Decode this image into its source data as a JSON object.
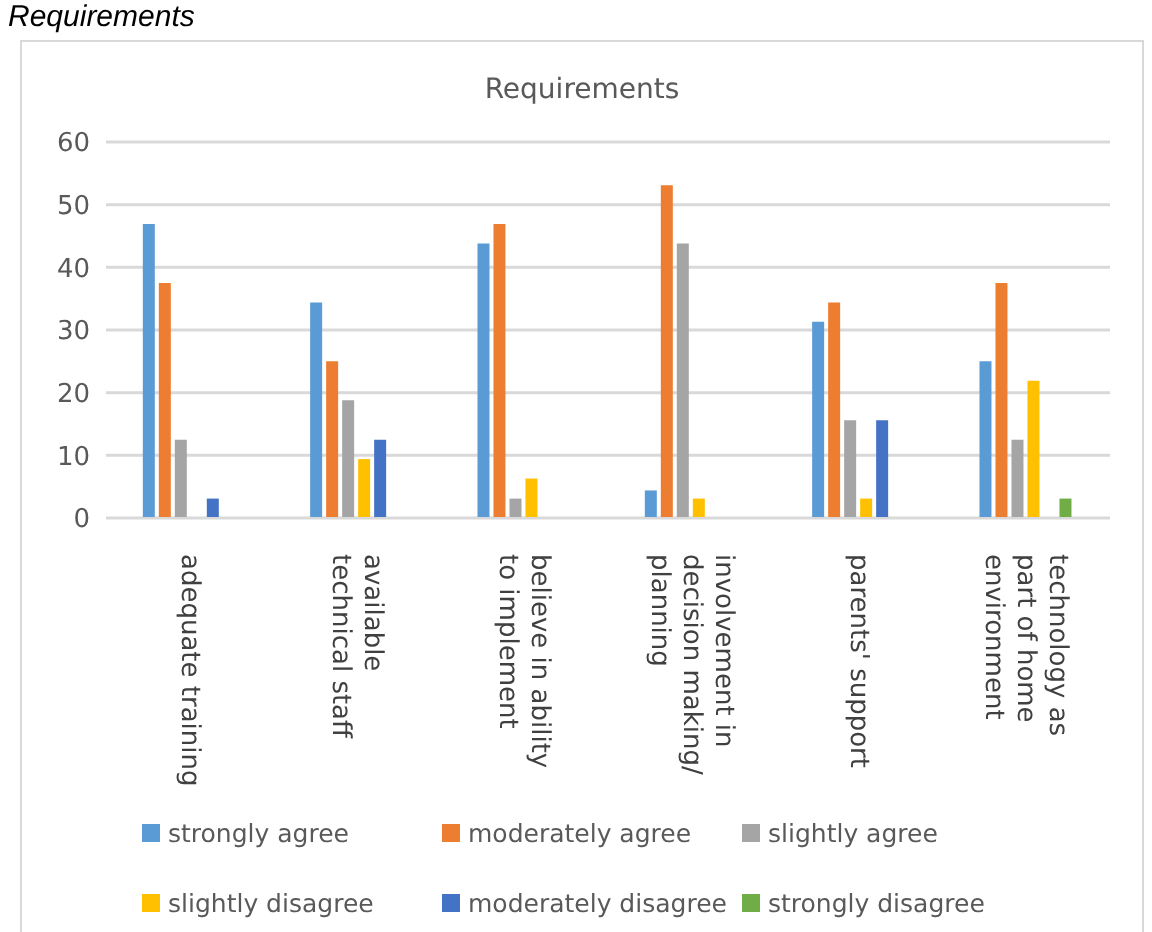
{
  "chart_data": {
    "type": "bar",
    "title": "Requirements",
    "annotations": [
      "Requirements"
    ],
    "categories": [
      "adequate training",
      "available\ntechnical staff",
      "believe in ability\nto implement",
      "involvement in\ndecision making/\nplanning",
      "parents' support",
      "technology as\npart of home\nenvironment"
    ],
    "series": [
      {
        "name": "strongly agree",
        "color": "#5b9bd5",
        "values": [
          46.9,
          34.4,
          43.8,
          4.4,
          31.3,
          25.0
        ]
      },
      {
        "name": "moderately agree",
        "color": "#ed7d31",
        "values": [
          37.5,
          25.0,
          46.9,
          53.1,
          34.4,
          37.5
        ]
      },
      {
        "name": "slightly agree",
        "color": "#a5a5a5",
        "values": [
          12.5,
          18.8,
          3.1,
          43.8,
          15.6,
          12.5
        ]
      },
      {
        "name": "slightly disagree",
        "color": "#ffc000",
        "values": [
          0,
          9.4,
          6.3,
          3.1,
          3.1,
          21.9
        ]
      },
      {
        "name": "moderately disagree",
        "color": "#4472c4",
        "values": [
          3.1,
          12.5,
          0,
          0,
          15.6,
          0
        ]
      },
      {
        "name": "strongly disagree",
        "color": "#70ad47",
        "values": [
          0,
          0,
          0,
          0,
          0,
          3.1
        ]
      }
    ],
    "ylim": [
      0,
      60
    ],
    "yticks": [
      0,
      10,
      20,
      30,
      40,
      50,
      60
    ],
    "grid": "y",
    "legend": "bottom"
  }
}
